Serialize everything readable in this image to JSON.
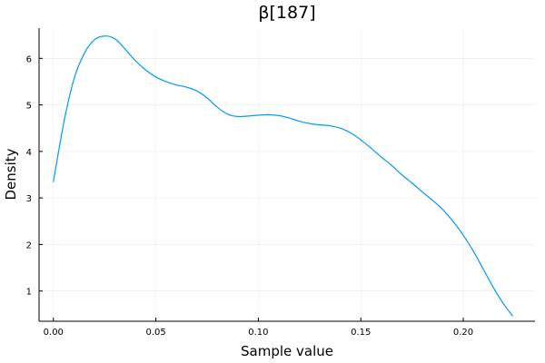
{
  "chart_data": {
    "type": "line",
    "title": "β[187]",
    "xlabel": "Sample value",
    "ylabel": "Density",
    "xlim": [
      -0.007,
      0.235
    ],
    "ylim": [
      0.35,
      6.65
    ],
    "x_ticks": [
      0.0,
      0.05,
      0.1,
      0.15,
      0.2
    ],
    "x_tick_labels": [
      "0.00",
      "0.05",
      "0.10",
      "0.15",
      "0.20"
    ],
    "y_ticks": [
      1,
      2,
      3,
      4,
      5,
      6
    ],
    "y_tick_labels": [
      "1",
      "2",
      "3",
      "4",
      "5",
      "6"
    ],
    "grid": true,
    "legend": "none",
    "series": [
      {
        "color": "#009af9",
        "x": [
          0.0,
          0.005,
          0.01,
          0.015,
          0.02,
          0.025,
          0.03,
          0.035,
          0.04,
          0.045,
          0.05,
          0.055,
          0.06,
          0.065,
          0.07,
          0.075,
          0.08,
          0.085,
          0.09,
          0.095,
          0.1,
          0.105,
          0.11,
          0.115,
          0.12,
          0.125,
          0.13,
          0.135,
          0.14,
          0.145,
          0.15,
          0.155,
          0.16,
          0.165,
          0.17,
          0.175,
          0.18,
          0.185,
          0.19,
          0.195,
          0.2,
          0.205,
          0.21,
          0.215,
          0.22,
          0.224
        ],
        "y": [
          3.35,
          4.6,
          5.55,
          6.1,
          6.4,
          6.48,
          6.42,
          6.2,
          5.95,
          5.75,
          5.6,
          5.5,
          5.43,
          5.38,
          5.3,
          5.15,
          4.95,
          4.8,
          4.75,
          4.76,
          4.78,
          4.79,
          4.77,
          4.72,
          4.65,
          4.6,
          4.57,
          4.55,
          4.5,
          4.4,
          4.25,
          4.07,
          3.88,
          3.7,
          3.5,
          3.32,
          3.13,
          2.95,
          2.75,
          2.5,
          2.2,
          1.85,
          1.45,
          1.05,
          0.7,
          0.47
        ]
      }
    ]
  }
}
